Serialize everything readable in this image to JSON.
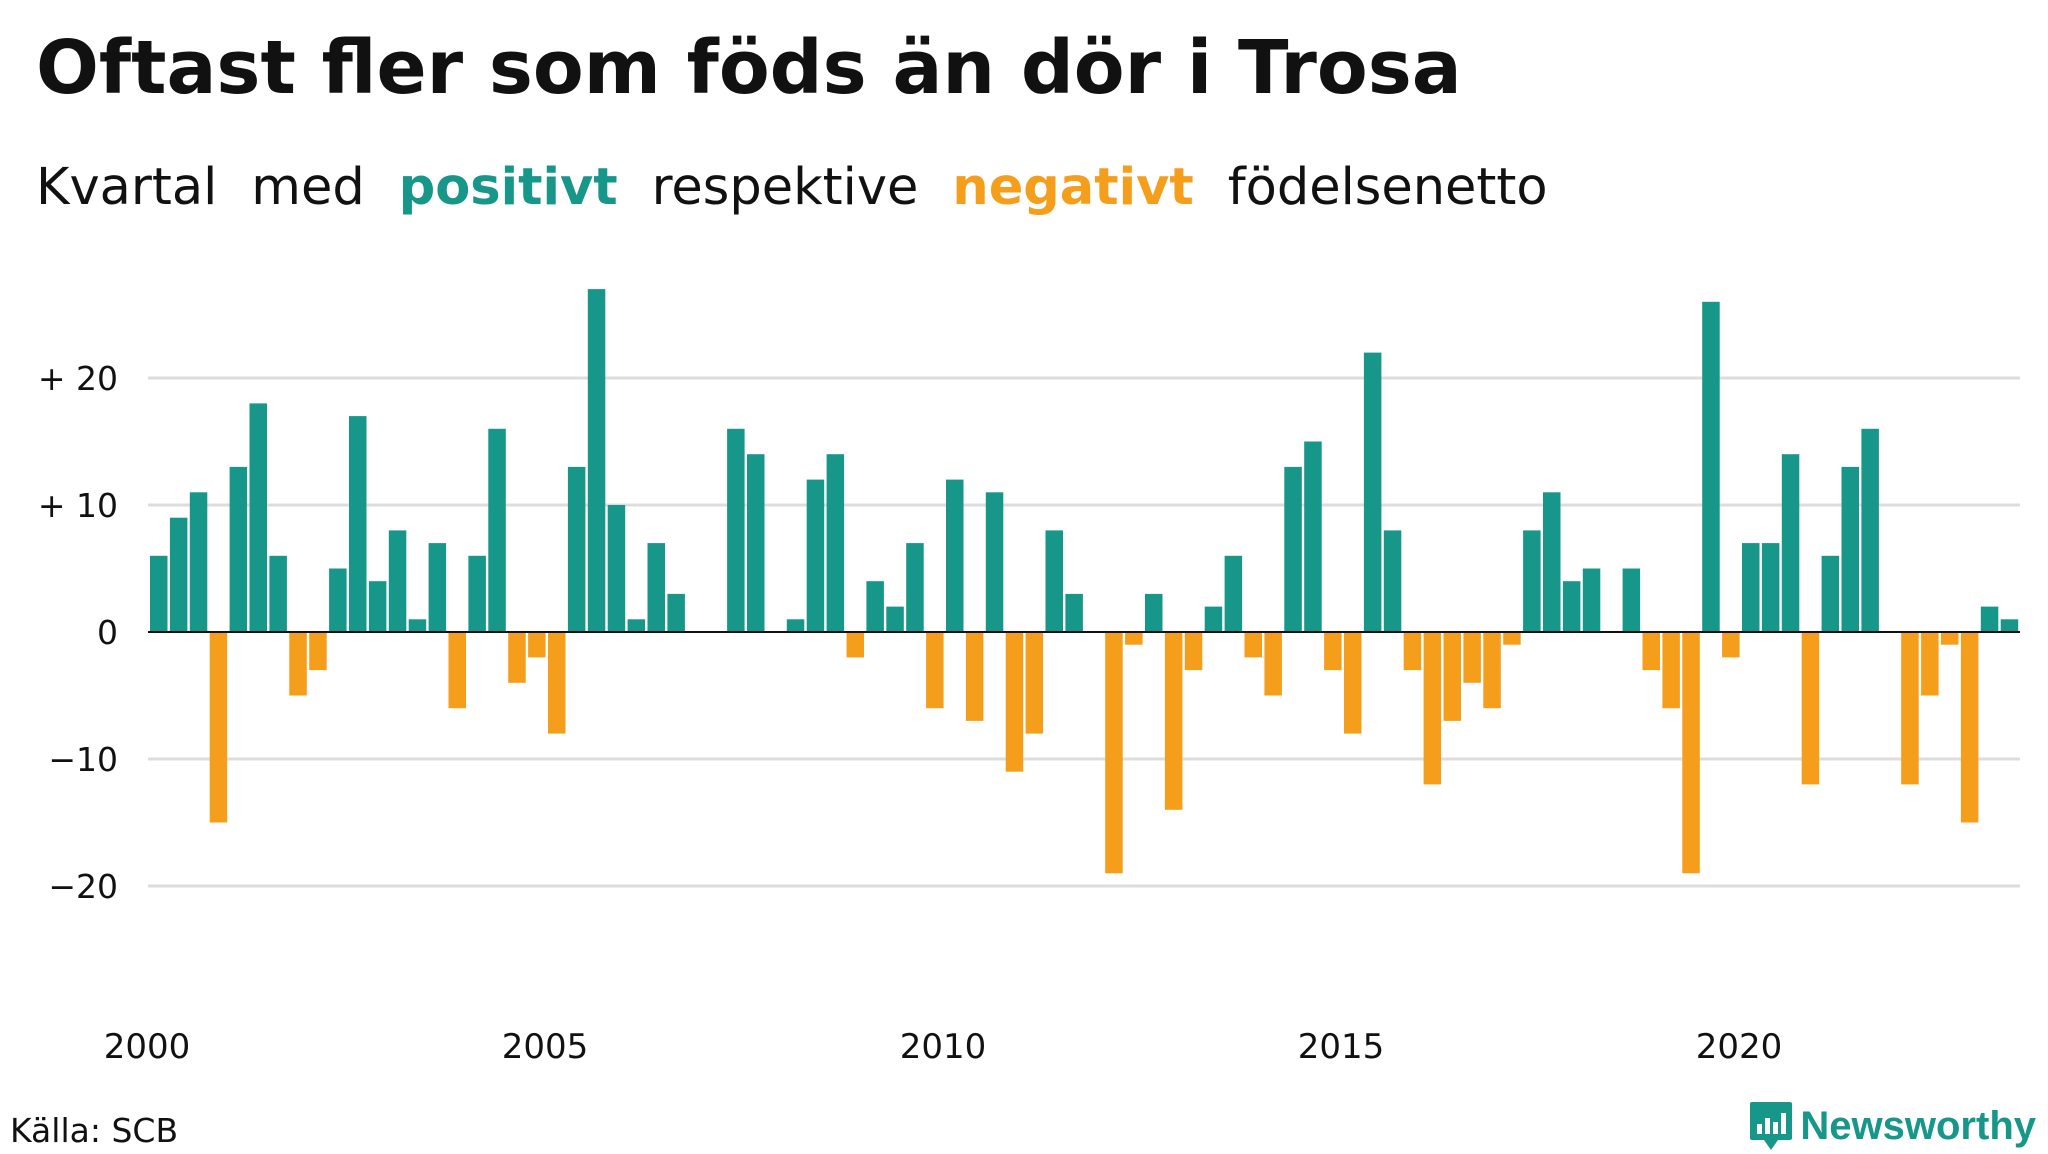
{
  "title": "Oftast fler som föds än dör i Trosa",
  "subtitle": {
    "part1": "Kvartal",
    "part2": "med",
    "positive_word": "positivt",
    "part3": "respektive",
    "negative_word": "negativt",
    "part4": "födelsenetto"
  },
  "source": "Källa: SCB",
  "brand": "Newsworthy",
  "colors": {
    "positive": "#17968a",
    "negative": "#f59e1c",
    "grid": "#dddddd",
    "baseline": "#111111",
    "text": "#111111"
  },
  "chart_data": {
    "type": "bar",
    "title": "Oftast fler som föds än dör i Trosa",
    "subtitle": "Kvartal med positivt respektive negativt födelsenetto",
    "xlabel": "",
    "ylabel": "",
    "x_ticks": [
      "2000",
      "2005",
      "2010",
      "2015",
      "2020"
    ],
    "y_ticks": [
      {
        "value": 20,
        "label": "+ 20"
      },
      {
        "value": 10,
        "label": "+ 10"
      },
      {
        "value": 0,
        "label": "0"
      },
      {
        "value": -10,
        "label": "−10"
      },
      {
        "value": -20,
        "label": "−20"
      }
    ],
    "ylim": [
      -30,
      30
    ],
    "grid": true,
    "legend": "none (colors explained in subtitle)",
    "categories": [
      "2000K1",
      "2000K2",
      "2000K3",
      "2000K4",
      "2001K1",
      "2001K2",
      "2001K3",
      "2001K4",
      "2002K1",
      "2002K2",
      "2002K3",
      "2002K4",
      "2003K1",
      "2003K2",
      "2003K3",
      "2003K4",
      "2004K1",
      "2004K2",
      "2004K3",
      "2004K4",
      "2005K1",
      "2005K2",
      "2005K3",
      "2005K4",
      "2006K1",
      "2006K2",
      "2006K3",
      "2006K4",
      "2007K1",
      "2007K2",
      "2007K3",
      "2007K4",
      "2008K1",
      "2008K2",
      "2008K3",
      "2008K4",
      "2009K1",
      "2009K2",
      "2009K3",
      "2009K4",
      "2010K1",
      "2010K2",
      "2010K3",
      "2010K4",
      "2011K1",
      "2011K2",
      "2011K3",
      "2011K4",
      "2012K1",
      "2012K2",
      "2012K3",
      "2012K4",
      "2013K1",
      "2013K2",
      "2013K3",
      "2013K4",
      "2014K1",
      "2014K2",
      "2014K3",
      "2014K4",
      "2015K1",
      "2015K2",
      "2015K3",
      "2015K4",
      "2016K1",
      "2016K2",
      "2016K3",
      "2016K4",
      "2017K1",
      "2017K2",
      "2017K3",
      "2017K4",
      "2018K1",
      "2018K2",
      "2018K3",
      "2018K4",
      "2019K1",
      "2019K2",
      "2019K3",
      "2019K4",
      "2020K1",
      "2020K2",
      "2020K3",
      "2020K4",
      "2021K1",
      "2021K2",
      "2021K3",
      "2021K4",
      "2022K1",
      "2022K2",
      "2022K3",
      "2022K4",
      "2023K1",
      "2023K2",
      "2023K3",
      "2023K4"
    ],
    "values": [
      6,
      9,
      11,
      -15,
      13,
      18,
      6,
      -5,
      -3,
      5,
      17,
      4,
      8,
      1,
      7,
      -6,
      6,
      16,
      -4,
      -2,
      -8,
      13,
      27,
      10,
      1,
      7,
      3,
      0,
      0,
      16,
      14,
      0,
      1,
      12,
      14,
      -2,
      4,
      2,
      7,
      -6,
      12,
      -7,
      11,
      -11,
      -8,
      8,
      3,
      0,
      -19,
      -1,
      3,
      -14,
      -3,
      2,
      6,
      -2,
      -5,
      13,
      15,
      -3,
      -8,
      22,
      8,
      -3,
      -12,
      -7,
      -4,
      -6,
      -1,
      8,
      11,
      4,
      5,
      0,
      5,
      -3,
      -6,
      -19,
      26,
      -2,
      7,
      7,
      14,
      -12,
      6,
      13,
      16,
      0,
      -12,
      -5,
      -1,
      -15,
      2,
      1,
      0,
      0
    ]
  }
}
